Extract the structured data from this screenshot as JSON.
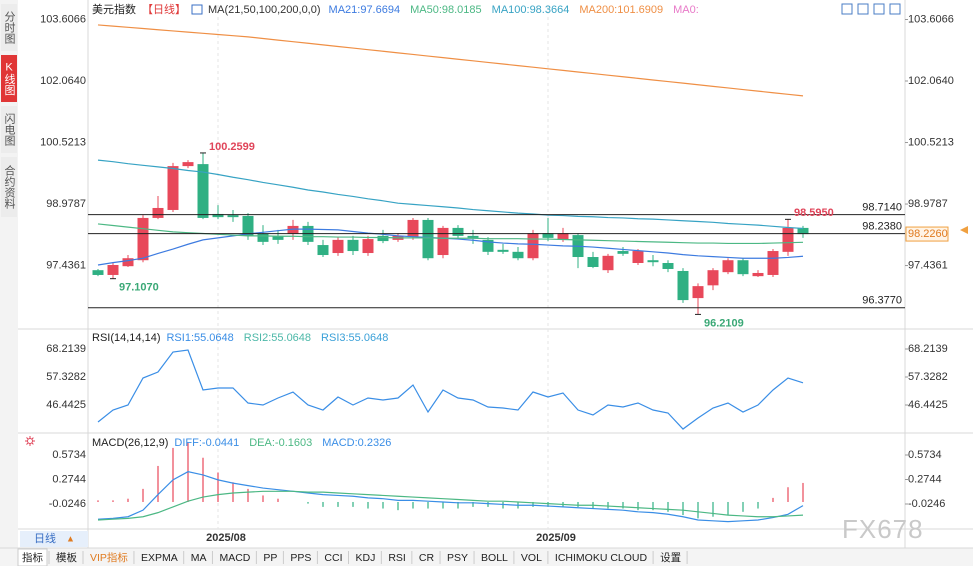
{
  "chart_data": [
    {
      "type": "candlestick",
      "title": "美元指数",
      "period": "【日线】",
      "indicator": "MA(21,50,100,200,0,0)",
      "categories": [
        null,
        null,
        null,
        null,
        null,
        null,
        null,
        null,
        "2025/08",
        null,
        null,
        null,
        null,
        null,
        null,
        null,
        null,
        null,
        null,
        null,
        null,
        null,
        null,
        null,
        null,
        null,
        null,
        null,
        null,
        null,
        "2025/09",
        null,
        null,
        null,
        null,
        null,
        null,
        null,
        null,
        null,
        null,
        null,
        null,
        null,
        null,
        null,
        null,
        null
      ],
      "open": [
        97.32,
        97.2,
        97.42,
        97.57,
        98.63,
        98.83,
        99.93,
        99.98,
        98.73,
        98.7,
        98.68,
        98.23,
        98.18,
        98.23,
        98.43,
        97.95,
        97.75,
        98.08,
        97.75,
        98.18,
        98.08,
        98.15,
        98.58,
        97.7,
        98.38,
        98.18,
        98.08,
        97.83,
        97.78,
        97.62,
        98.25,
        98.08,
        98.2,
        97.65,
        97.32,
        97.8,
        97.5,
        97.57,
        97.5,
        97.3,
        96.62,
        96.94,
        97.27,
        97.57,
        97.17,
        97.2,
        97.78,
        98.38
      ],
      "high": [
        97.35,
        97.5,
        97.7,
        98.7,
        99.18,
        100.01,
        100.08,
        100.2599,
        98.95,
        98.83,
        98.75,
        98.45,
        98.33,
        98.58,
        98.53,
        98.08,
        98.15,
        98.18,
        98.18,
        98.33,
        98.25,
        98.63,
        98.63,
        98.43,
        98.45,
        98.33,
        98.15,
        97.98,
        97.9,
        98.33,
        98.63,
        98.38,
        98.25,
        97.78,
        97.73,
        97.9,
        97.85,
        97.7,
        97.57,
        97.37,
        96.99,
        97.37,
        97.62,
        97.62,
        97.32,
        97.85,
        98.595,
        98.43
      ],
      "low": [
        97.17,
        97.107,
        97.4,
        97.52,
        98.6,
        98.78,
        99.88,
        98.6,
        98.6,
        98.53,
        98.08,
        97.95,
        97.98,
        98.08,
        97.95,
        97.65,
        97.68,
        97.7,
        97.68,
        98.0,
        98.03,
        98.08,
        97.57,
        97.62,
        98.13,
        97.98,
        97.7,
        97.73,
        97.57,
        97.57,
        98.05,
        98.03,
        97.37,
        97.37,
        97.25,
        97.68,
        97.45,
        97.42,
        97.27,
        96.5,
        96.2109,
        96.82,
        97.22,
        97.17,
        97.15,
        97.15,
        97.68,
        98.13
      ],
      "close": [
        97.2,
        97.45,
        97.62,
        98.63,
        98.88,
        99.93,
        100.03,
        98.63,
        98.65,
        98.65,
        98.18,
        98.03,
        98.08,
        98.43,
        98.03,
        97.7,
        98.08,
        97.8,
        98.1,
        98.05,
        98.18,
        98.58,
        97.62,
        98.38,
        98.18,
        98.13,
        97.78,
        97.78,
        97.62,
        98.25,
        98.13,
        98.25,
        97.65,
        97.4,
        97.68,
        97.73,
        97.8,
        97.52,
        97.35,
        96.57,
        96.92,
        97.32,
        97.57,
        97.22,
        97.25,
        97.8,
        98.38,
        98.226
      ],
      "up_color": "#e8485a",
      "down_color": "#2fb083",
      "series": [
        {
          "name": "MA21:97.6694",
          "color": "#3d7be0",
          "values": [
            97.45,
            97.51,
            97.56,
            97.62,
            97.74,
            97.85,
            97.97,
            98.08,
            98.13,
            98.18,
            98.23,
            98.27,
            98.31,
            98.35,
            98.35,
            98.34,
            98.33,
            98.29,
            98.25,
            98.22,
            98.18,
            98.16,
            98.14,
            98.12,
            98.1,
            98.07,
            98.03,
            98.0,
            97.98,
            97.97,
            97.95,
            97.93,
            97.92,
            97.9,
            97.87,
            97.84,
            97.81,
            97.78,
            97.75,
            97.71,
            97.68,
            97.66,
            97.64,
            97.62,
            97.62,
            97.62,
            97.64,
            97.6694
          ]
        },
        {
          "name": "MA50:98.0185",
          "color": "#4cb884",
          "values": [
            98.48,
            98.44,
            98.4,
            98.36,
            98.32,
            98.28,
            98.26,
            98.24,
            98.22,
            98.2,
            98.18,
            98.18,
            98.17,
            98.17,
            98.16,
            98.16,
            98.15,
            98.15,
            98.14,
            98.14,
            98.13,
            98.13,
            98.13,
            98.12,
            98.12,
            98.12,
            98.11,
            98.11,
            98.11,
            98.1,
            98.1,
            98.09,
            98.08,
            98.07,
            98.06,
            98.05,
            98.04,
            98.03,
            98.02,
            98.01,
            98.0,
            98.0,
            97.99,
            97.99,
            97.99,
            98.0,
            98.01,
            98.0185
          ]
        },
        {
          "name": "MA100:98.3664",
          "color": "#37a3c4",
          "values": [
            100.08,
            100.04,
            99.99,
            99.95,
            99.91,
            99.87,
            99.82,
            99.78,
            99.72,
            99.65,
            99.59,
            99.52,
            99.46,
            99.4,
            99.33,
            99.28,
            99.22,
            99.17,
            99.11,
            99.06,
            99.0,
            98.97,
            98.94,
            98.91,
            98.88,
            98.84,
            98.81,
            98.78,
            98.75,
            98.73,
            98.7,
            98.69,
            98.67,
            98.66,
            98.64,
            98.63,
            98.61,
            98.6,
            98.58,
            98.56,
            98.54,
            98.52,
            98.49,
            98.47,
            98.45,
            98.42,
            98.39,
            98.3664
          ]
        },
        {
          "name": "MA200:101.6909",
          "color": "#ef8f45",
          "values": [
            103.47,
            103.44,
            103.41,
            103.38,
            103.35,
            103.32,
            103.29,
            103.26,
            103.23,
            103.2,
            103.17,
            103.13,
            103.09,
            103.05,
            103.01,
            102.97,
            102.93,
            102.89,
            102.85,
            102.81,
            102.77,
            102.73,
            102.69,
            102.65,
            102.61,
            102.57,
            102.53,
            102.49,
            102.45,
            102.41,
            102.37,
            102.33,
            102.29,
            102.25,
            102.21,
            102.17,
            102.13,
            102.09,
            102.05,
            102.01,
            101.97,
            101.93,
            101.89,
            101.85,
            101.81,
            101.77,
            101.73,
            101.6909
          ]
        }
      ],
      "extra_legend": [
        {
          "label": "MA0:",
          "color": "#e879c8"
        }
      ],
      "ylim": [
        95.87,
        103.97
      ],
      "yticks": [
        97.4361,
        98.9787,
        100.5213,
        {
          "value": 102.064,
          "label": "102.0640"
        },
        103.6066
      ],
      "levels": [
        {
          "value": 98.714,
          "label": "98.7140"
        },
        {
          "value": 98.238,
          "label": "98.2380"
        },
        {
          "value": 96.377,
          "label": "96.3770"
        }
      ],
      "annotations": [
        {
          "label": "100.2599",
          "value": 100.2599,
          "at": "high",
          "color": "#e0455a"
        },
        {
          "label": "97.1070",
          "value": 97.107,
          "at": "low",
          "color": "#3aa876"
        },
        {
          "label": "98.5950",
          "value": 98.595,
          "at": "high",
          "color": "#e0455a"
        },
        {
          "label": "96.2109",
          "value": 96.2109,
          "at": "low",
          "color": "#3aa876"
        }
      ],
      "last_price": {
        "value": 98.226,
        "label": "98.2260"
      }
    },
    {
      "type": "line",
      "title": "RSI(14,14,14)",
      "series": [
        {
          "name": "RSI1:55.0648",
          "color": "#3a8ee6",
          "values": [
            39.83,
            44.49,
            46.44,
            56.93,
            59.27,
            67.04,
            67.82,
            52.27,
            53.05,
            53.05,
            47.21,
            46.44,
            49.16,
            51.49,
            46.44,
            44.49,
            49.55,
            46.44,
            49.16,
            48.38,
            49.16,
            54.21,
            43.71,
            52.27,
            49.16,
            48.38,
            45.66,
            45.27,
            44.49,
            51.49,
            49.55,
            51.1,
            44.49,
            42.55,
            46.44,
            45.66,
            47.21,
            44.49,
            43.33,
            37.1,
            41.38,
            45.27,
            47.21,
            43.71,
            46.44,
            52.27,
            56.93,
            55.0648
          ]
        }
      ],
      "extra_legend": [
        {
          "label": "RSI2:55.0648",
          "color": "#4cb8a8"
        },
        {
          "label": "RSI3:55.0648",
          "color": "#3aa0d8"
        }
      ],
      "ylim": [
        35.94,
        75.6
      ],
      "yticks": [
        46.4425,
        57.3282,
        68.2139
      ]
    },
    {
      "type": "combo",
      "title": "MACD(26,12,9)",
      "series": [
        {
          "name": "DIFF:-0.0441",
          "type": "line",
          "color": "#3a8ee6",
          "values": [
            -0.21,
            -0.2,
            -0.18,
            -0.1,
            0.09,
            0.27,
            0.37,
            0.33,
            0.27,
            0.23,
            0.2,
            0.17,
            0.15,
            0.13,
            0.11,
            0.09,
            0.08,
            0.07,
            0.05,
            0.04,
            0.02,
            0.02,
            0.01,
            0.0,
            -0.01,
            -0.01,
            -0.02,
            -0.03,
            -0.04,
            -0.04,
            -0.05,
            -0.06,
            -0.07,
            -0.08,
            -0.09,
            -0.1,
            -0.12,
            -0.13,
            -0.15,
            -0.18,
            -0.22,
            -0.23,
            -0.24,
            -0.23,
            -0.22,
            -0.19,
            -0.15,
            -0.0441
          ]
        },
        {
          "name": "DEA:-0.1603",
          "type": "line",
          "color": "#4cb884",
          "values": [
            -0.22,
            -0.21,
            -0.2,
            -0.18,
            -0.13,
            -0.06,
            0.01,
            0.06,
            0.09,
            0.11,
            0.12,
            0.13,
            0.13,
            0.13,
            0.12,
            0.12,
            0.11,
            0.1,
            0.09,
            0.08,
            0.07,
            0.06,
            0.05,
            0.04,
            0.03,
            0.02,
            0.01,
            0.01,
            0.0,
            -0.01,
            -0.02,
            -0.03,
            -0.04,
            -0.04,
            -0.05,
            -0.06,
            -0.07,
            -0.08,
            -0.09,
            -0.1,
            -0.12,
            -0.14,
            -0.16,
            -0.17,
            -0.18,
            -0.18,
            -0.17,
            -0.1603
          ]
        },
        {
          "name": "MACD:0.2326",
          "type": "bar",
          "color": "#3a8ee6",
          "up_color": "#e8485a",
          "down_color": "#2fb083",
          "values": [
            0.02,
            0.02,
            0.04,
            0.16,
            0.44,
            0.66,
            0.72,
            0.54,
            0.36,
            0.24,
            0.16,
            0.08,
            0.04,
            0.0,
            -0.02,
            -0.06,
            -0.06,
            -0.06,
            -0.08,
            -0.08,
            -0.1,
            -0.08,
            -0.08,
            -0.08,
            -0.08,
            -0.06,
            -0.06,
            -0.08,
            -0.08,
            -0.06,
            -0.06,
            -0.06,
            -0.06,
            -0.08,
            -0.08,
            -0.08,
            -0.1,
            -0.1,
            -0.12,
            -0.16,
            -0.2,
            -0.18,
            -0.16,
            -0.12,
            -0.08,
            0.05,
            0.18,
            0.2326
          ]
        }
      ],
      "ylim": [
        -0.525,
        0.8175
      ],
      "yticks": [
        -0.0246,
        0.2744,
        0.5734
      ]
    }
  ],
  "ui": {
    "side_tabs": [
      {
        "label": "分时图"
      },
      {
        "label": "K线图",
        "active": true
      },
      {
        "label": "闪电图"
      },
      {
        "label": "合约资料"
      }
    ],
    "period_button": "日线",
    "period_arrow": "▲",
    "watermark": "FX678",
    "toolbar": [
      {
        "label": "指标",
        "active": true
      },
      {
        "label": "模板"
      },
      {
        "label": "VIP指标",
        "color": "#e07b20"
      },
      {
        "label": "EXPMA"
      },
      {
        "label": "MA"
      },
      {
        "label": "MACD"
      },
      {
        "label": "PP"
      },
      {
        "label": "PPS"
      },
      {
        "label": "CCI"
      },
      {
        "label": "KDJ"
      },
      {
        "label": "RSI"
      },
      {
        "label": "CR"
      },
      {
        "label": "PSY"
      },
      {
        "label": "BOLL"
      },
      {
        "label": "VOL"
      },
      {
        "label": "ICHIMOKU CLOUD"
      },
      {
        "label": "设置"
      }
    ]
  }
}
